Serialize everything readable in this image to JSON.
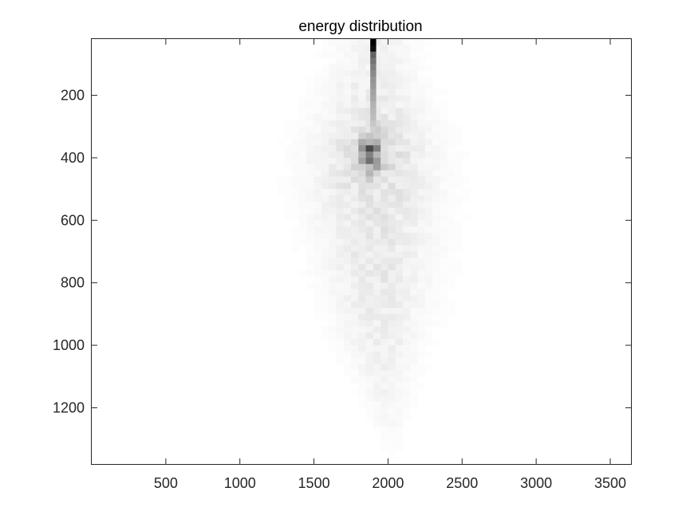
{
  "chart_data": {
    "type": "heatmap",
    "title": "energy distribution",
    "xlabel": "",
    "ylabel": "",
    "xlim": [
      0,
      3640
    ],
    "ylim": [
      20,
      1380
    ],
    "y_reversed": true,
    "grid": false,
    "colormap": "gray-inverted",
    "x_ticks": [
      500,
      1000,
      1500,
      2000,
      2500,
      3000,
      3500
    ],
    "y_ticks": [
      200,
      400,
      600,
      800,
      1000,
      1200
    ],
    "bin_width_x": 50,
    "bin_height_y": 20,
    "cloud": [
      {
        "y": 100,
        "x_center": 1900,
        "x_spread": 330,
        "peak": 0.05
      },
      {
        "y": 200,
        "x_center": 1900,
        "x_spread": 380,
        "peak": 0.07
      },
      {
        "y": 300,
        "x_center": 1900,
        "x_spread": 420,
        "peak": 0.1
      },
      {
        "y": 400,
        "x_center": 1900,
        "x_spread": 450,
        "peak": 0.13
      },
      {
        "y": 500,
        "x_center": 1900,
        "x_spread": 460,
        "peak": 0.11
      },
      {
        "y": 600,
        "x_center": 1920,
        "x_spread": 450,
        "peak": 0.09
      },
      {
        "y": 700,
        "x_center": 1930,
        "x_spread": 430,
        "peak": 0.085
      },
      {
        "y": 800,
        "x_center": 1940,
        "x_spread": 400,
        "peak": 0.08
      },
      {
        "y": 900,
        "x_center": 1950,
        "x_spread": 360,
        "peak": 0.07
      },
      {
        "y": 1000,
        "x_center": 1960,
        "x_spread": 300,
        "peak": 0.06
      },
      {
        "y": 1100,
        "x_center": 1980,
        "x_spread": 230,
        "peak": 0.045
      },
      {
        "y": 1200,
        "x_center": 2000,
        "x_spread": 170,
        "peak": 0.03
      },
      {
        "y": 1300,
        "x_center": 2020,
        "x_spread": 110,
        "peak": 0.015
      }
    ],
    "hotspot": {
      "x": 1880,
      "y": 385,
      "x_spread": 70,
      "y_spread": 55,
      "peak": 0.42
    },
    "spike": {
      "x": 1900,
      "y_values": [
        30,
        50,
        70,
        90,
        110,
        130,
        150,
        170,
        190,
        210,
        230,
        250,
        270,
        290,
        310
      ],
      "intensity": [
        1.0,
        0.95,
        0.62,
        0.55,
        0.5,
        0.46,
        0.42,
        0.4,
        0.36,
        0.34,
        0.3,
        0.28,
        0.26,
        0.22,
        0.18
      ]
    }
  }
}
